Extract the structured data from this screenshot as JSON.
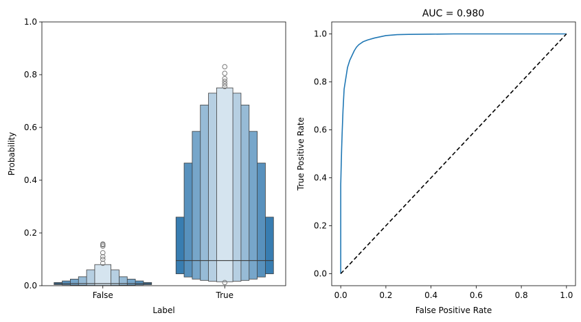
{
  "chart_data": [
    {
      "type": "boxen",
      "title": "",
      "xlabel": "Label",
      "ylabel": "Probability",
      "ylim": [
        0,
        1.0
      ],
      "yticks": [
        "0.0",
        "0.2",
        "0.4",
        "0.6",
        "0.8",
        "1.0"
      ],
      "categories": [
        "False",
        "True"
      ],
      "color": "#2e76ad",
      "groups": [
        {
          "category": "False",
          "median": 0.008,
          "levels": [
            [
              0.004,
              0.012
            ],
            [
              0.003,
              0.018
            ],
            [
              0.002,
              0.025
            ],
            [
              0.0015,
              0.034
            ],
            [
              0.001,
              0.06
            ],
            [
              0.0008,
              0.08
            ]
          ],
          "outliers": [
            0.085,
            0.1,
            0.11,
            0.125,
            0.15,
            0.155,
            0.158
          ]
        },
        {
          "category": "True",
          "median": 0.095,
          "levels": [
            [
              0.045,
              0.26
            ],
            [
              0.033,
              0.465
            ],
            [
              0.025,
              0.585
            ],
            [
              0.02,
              0.685
            ],
            [
              0.017,
              0.73
            ],
            [
              0.015,
              0.75
            ]
          ],
          "outliers": [
            0.012,
            0.755,
            0.765,
            0.775,
            0.785,
            0.805,
            0.83
          ]
        }
      ]
    },
    {
      "type": "line",
      "title": "AUC = 0.980",
      "xlabel": "False Positive Rate",
      "ylabel": "True Positive Rate",
      "xlim": [
        -0.04,
        1.04
      ],
      "ylim": [
        -0.05,
        1.05
      ],
      "xticks": [
        "0.0",
        "0.2",
        "0.4",
        "0.6",
        "0.8",
        "1.0"
      ],
      "yticks": [
        "0.0",
        "0.2",
        "0.4",
        "0.6",
        "0.8",
        "1.0"
      ],
      "series": [
        {
          "name": "",
          "color": "#1f77b4",
          "style": "solid",
          "x": [
            0,
            0,
            0.002,
            0.004,
            0.006,
            0.008,
            0.01,
            0.015,
            0.02,
            0.025,
            0.03,
            0.04,
            0.05,
            0.06,
            0.07,
            0.08,
            0.1,
            0.12,
            0.15,
            0.2,
            0.25,
            0.3,
            0.4,
            0.5,
            0.6,
            0.8,
            1.0
          ],
          "y": [
            0,
            0.37,
            0.45,
            0.52,
            0.58,
            0.63,
            0.68,
            0.77,
            0.8,
            0.83,
            0.86,
            0.89,
            0.91,
            0.93,
            0.945,
            0.955,
            0.968,
            0.975,
            0.983,
            0.993,
            0.997,
            0.998,
            0.999,
            1.0,
            1.0,
            1.0,
            1.0
          ]
        },
        {
          "name": "",
          "color": "#000000",
          "style": "dashed",
          "x": [
            0,
            1
          ],
          "y": [
            0,
            1
          ]
        }
      ]
    }
  ]
}
